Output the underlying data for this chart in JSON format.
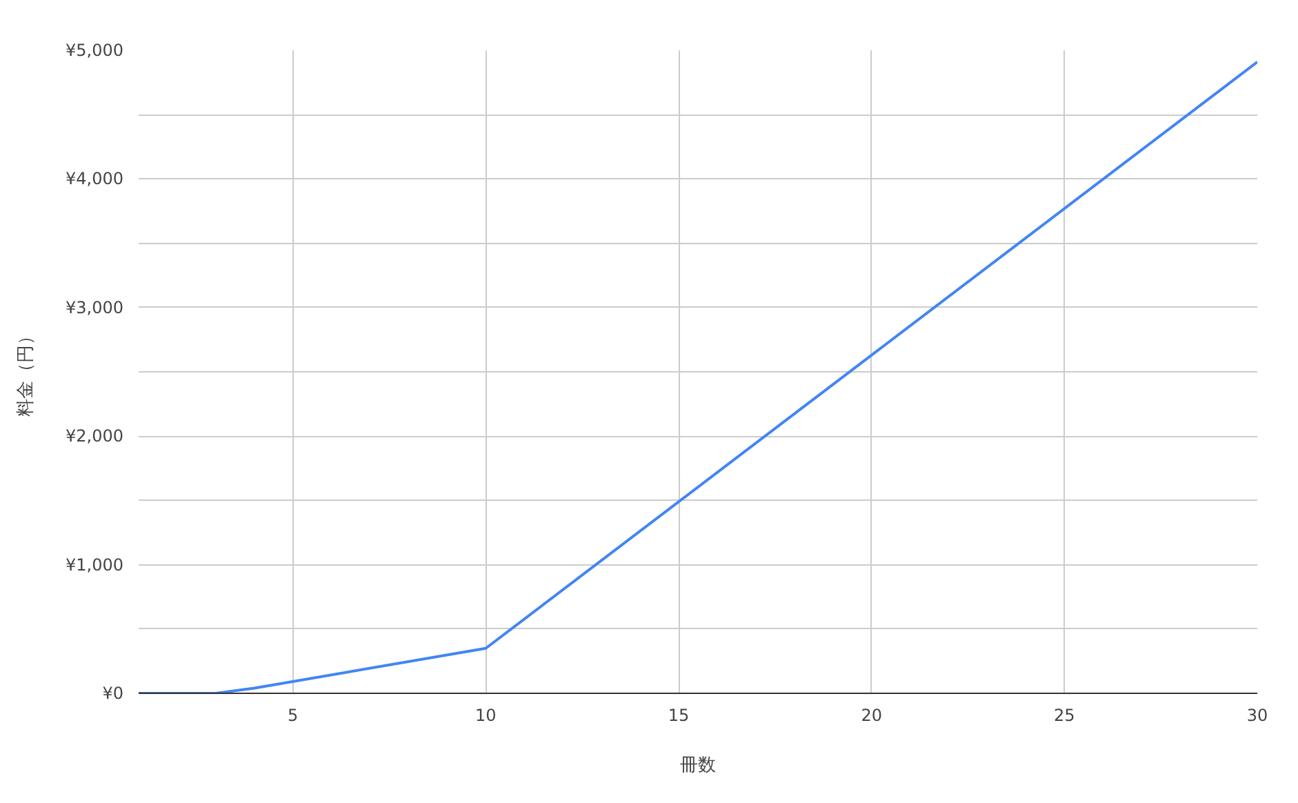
{
  "chart_data": {
    "type": "line",
    "xlabel": "冊数",
    "ylabel": "料金（円）",
    "x": [
      1,
      3,
      4,
      10,
      30
    ],
    "series": [
      {
        "color": "#4285f4",
        "values": [
          0,
          0,
          40,
          350,
          4910
        ]
      }
    ],
    "xlim": [
      1,
      30
    ],
    "xticks": [
      5,
      10,
      15,
      20,
      25,
      30
    ],
    "ylim": [
      0,
      5000
    ],
    "yticks": [
      {
        "value": 0,
        "label": "¥0"
      },
      {
        "value": 500,
        "label": null
      },
      {
        "value": 1000,
        "label": "¥1,000"
      },
      {
        "value": 1500,
        "label": null
      },
      {
        "value": 2000,
        "label": "¥2,000"
      },
      {
        "value": 2500,
        "label": null
      },
      {
        "value": 3000,
        "label": "¥3,000"
      },
      {
        "value": 3500,
        "label": null
      },
      {
        "value": 4000,
        "label": "¥4,000"
      },
      {
        "value": 4500,
        "label": null
      },
      {
        "value": 5000,
        "label": "¥5,000"
      }
    ],
    "grid": true,
    "marker": "none",
    "line_style": "solid"
  }
}
